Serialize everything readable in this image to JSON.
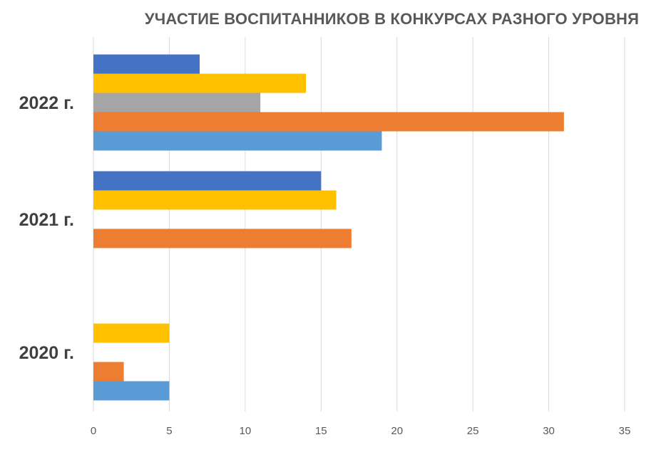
{
  "chart_data": {
    "type": "bar",
    "orientation": "horizontal",
    "title": "УЧАСТИЕ ВОСПИТАННИКОВ В КОНКУРСАХ РАЗНОГО УРОВНЯ",
    "categories": [
      "2022 г.",
      "2021 г.",
      "2020 г."
    ],
    "xlim": [
      0,
      35
    ],
    "xticks": [
      0,
      5,
      10,
      15,
      20,
      25,
      30,
      35
    ],
    "grid": true,
    "legend": "none",
    "series": [
      {
        "color": "#4472C4",
        "values": [
          7,
          15,
          0
        ]
      },
      {
        "color": "#FFC000",
        "values": [
          14,
          16,
          5
        ]
      },
      {
        "color": "#A5A5A5",
        "values": [
          11,
          0,
          0
        ]
      },
      {
        "color": "#ED7D31",
        "values": [
          31,
          17,
          2
        ]
      },
      {
        "color": "#5B9BD5",
        "values": [
          19,
          0,
          5
        ]
      }
    ]
  }
}
